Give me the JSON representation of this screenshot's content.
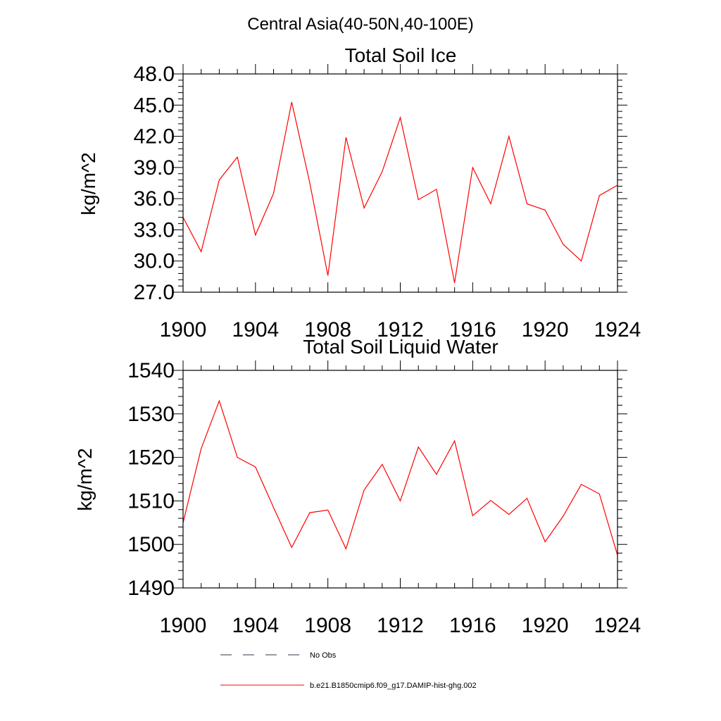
{
  "page_title": "Central Asia(40-50N,40-100E)",
  "chart_data": [
    {
      "type": "line",
      "title": "Total Soil Ice",
      "xlabel": "",
      "ylabel": "kg/m^2",
      "xlim": [
        1900,
        1924
      ],
      "ylim": [
        27.0,
        48.0
      ],
      "xticks": [
        "1900",
        "1904",
        "1908",
        "1912",
        "1916",
        "1920",
        "1924"
      ],
      "yticks": [
        "27.0",
        "30.0",
        "33.0",
        "36.0",
        "39.0",
        "42.0",
        "45.0",
        "48.0"
      ],
      "series": [
        {
          "name": "b.e21.B1850cmip6.f09_g17.DAMIP-hist-ghg.002",
          "color": "#ff0000",
          "x": [
            1900,
            1901,
            1902,
            1903,
            1904,
            1905,
            1906,
            1907,
            1908,
            1909,
            1910,
            1911,
            1912,
            1913,
            1914,
            1915,
            1916,
            1917,
            1918,
            1919,
            1920,
            1921,
            1922,
            1923,
            1924
          ],
          "values": [
            34.2,
            30.9,
            37.8,
            40.0,
            32.5,
            36.5,
            45.3,
            37.5,
            28.6,
            41.9,
            35.1,
            38.6,
            43.8,
            35.9,
            36.9,
            27.9,
            39.0,
            35.5,
            42.0,
            35.5,
            34.9,
            31.6,
            30.0,
            36.3,
            37.3
          ]
        }
      ]
    },
    {
      "type": "line",
      "title": "Total Soil Liquid Water",
      "xlabel": "",
      "ylabel": "kg/m^2",
      "xlim": [
        1900,
        1924
      ],
      "ylim": [
        1490,
        1540
      ],
      "xticks": [
        "1900",
        "1904",
        "1908",
        "1912",
        "1916",
        "1920",
        "1924"
      ],
      "yticks": [
        "1490",
        "1500",
        "1510",
        "1520",
        "1530",
        "1540"
      ],
      "series": [
        {
          "name": "b.e21.B1850cmip6.f09_g17.DAMIP-hist-ghg.002",
          "color": "#ff0000",
          "x": [
            1900,
            1901,
            1902,
            1903,
            1904,
            1905,
            1906,
            1907,
            1908,
            1909,
            1910,
            1911,
            1912,
            1913,
            1914,
            1915,
            1916,
            1917,
            1918,
            1919,
            1920,
            1921,
            1922,
            1923,
            1924
          ],
          "values": [
            1505.0,
            1522.0,
            1533.0,
            1520.0,
            1517.8,
            1508.5,
            1499.3,
            1507.3,
            1507.9,
            1499.0,
            1512.5,
            1518.4,
            1510.0,
            1522.4,
            1516.1,
            1523.8,
            1506.6,
            1510.1,
            1506.9,
            1510.6,
            1500.6,
            1506.5,
            1513.8,
            1511.6,
            1497.5
          ]
        }
      ]
    }
  ],
  "legend": {
    "placement": "bottom",
    "items": [
      {
        "label": "No Obs",
        "style": "dashed",
        "color": "#33334d"
      },
      {
        "label": "b.e21.B1850cmip6.f09_g17.DAMIP-hist-ghg.002",
        "style": "solid",
        "color": "#ff0000"
      }
    ]
  }
}
